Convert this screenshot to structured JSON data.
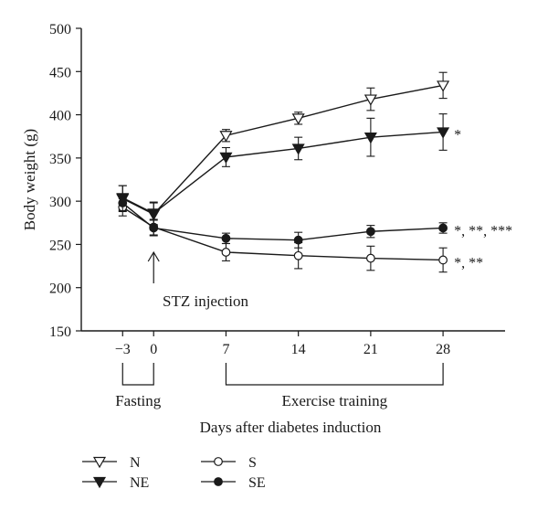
{
  "chart_data": {
    "type": "line",
    "title": "",
    "xlabel": "Days after diabetes induction",
    "ylabel": "Body weight (g)",
    "ylim": [
      150,
      500
    ],
    "yticks": [
      150,
      200,
      250,
      300,
      350,
      400,
      450,
      500
    ],
    "xlim": [
      -7,
      34
    ],
    "x": [
      -3,
      0,
      7,
      14,
      21,
      28
    ],
    "xtick_labels": [
      "−3",
      "0",
      "7",
      "14",
      "21",
      "28"
    ],
    "grid": false,
    "legend_position": "bottom-left",
    "series": [
      {
        "name": "N",
        "marker": "triangle-down-open",
        "values": [
          303,
          285,
          376,
          396,
          418,
          434
        ],
        "errors": [
          15,
          13,
          7,
          7,
          13,
          15
        ],
        "color": "#1a1a1a"
      },
      {
        "name": "NE",
        "marker": "triangle-down-filled",
        "values": [
          304,
          286,
          351,
          361,
          374,
          380
        ],
        "errors": [
          14,
          13,
          11,
          13,
          22,
          21
        ],
        "color": "#1a1a1a"
      },
      {
        "name": "S",
        "marker": "circle-open",
        "values": [
          293,
          270,
          241,
          237,
          234,
          232
        ],
        "errors": [
          10,
          9,
          10,
          15,
          14,
          14
        ],
        "color": "#1a1a1a"
      },
      {
        "name": "SE",
        "marker": "circle-filled",
        "values": [
          298,
          269,
          257,
          255,
          265,
          269
        ],
        "errors": [
          9,
          9,
          6,
          9,
          7,
          6
        ],
        "color": "#1a1a1a"
      }
    ],
    "significance": [
      {
        "series": "NE",
        "label": "*"
      },
      {
        "series": "SE",
        "label": "*, **, ***"
      },
      {
        "series": "S",
        "label": "*, **"
      }
    ],
    "annotations": {
      "injection_label": "STZ injection",
      "injection_day": 0,
      "phases": [
        {
          "label": "Fasting",
          "from": -3,
          "to": 0
        },
        {
          "label": "Exercise training",
          "from": 7,
          "to": 28
        }
      ]
    }
  }
}
